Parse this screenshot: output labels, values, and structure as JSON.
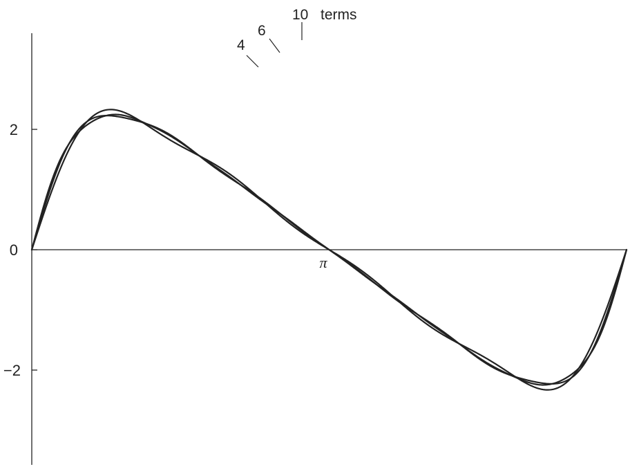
{
  "chart_data": {
    "type": "line",
    "title": "",
    "xlabel": "",
    "ylabel": "",
    "xlim": [
      0,
      6.283185307
    ],
    "ylim": [
      -3.5,
      3.5
    ],
    "x_ticks": [
      {
        "value": 3.141592654,
        "label": "π"
      }
    ],
    "y_ticks": [
      {
        "value": 2,
        "label": "2"
      },
      {
        "value": 0,
        "label": "0"
      },
      {
        "value": -2,
        "label": "−2"
      }
    ],
    "grid": false,
    "legend": "none",
    "series": [
      {
        "name": "4",
        "terms": 4
      },
      {
        "name": "6",
        "terms": 6
      },
      {
        "name": "10",
        "terms": 10
      }
    ],
    "series_suffix_label": "terms",
    "line_color": "#222222"
  }
}
